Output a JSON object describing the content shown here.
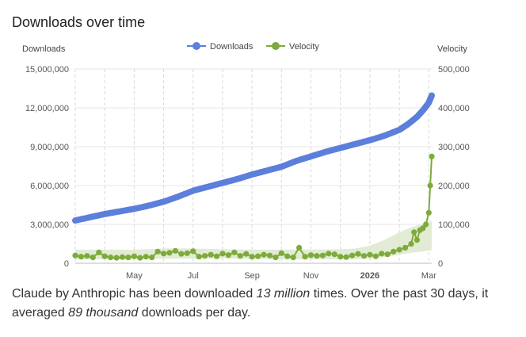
{
  "chart_data": {
    "type": "line",
    "title": "Downloads over time",
    "ylabel_left": "Downloads",
    "ylabel_right": "Velocity",
    "ylim_left": [
      0,
      15000000
    ],
    "ylim_right": [
      0,
      500000
    ],
    "yticks_left": [
      "0",
      "3,000,000",
      "6,000,000",
      "9,000,000",
      "12,000,000",
      "15,000,000"
    ],
    "yticks_right": [
      "0",
      "100,000",
      "200,000",
      "300,000",
      "400,000",
      "500,000"
    ],
    "xticks": [
      {
        "label": "May",
        "bold": false,
        "x": 2.0
      },
      {
        "label": "Jul",
        "bold": false,
        "x": 4.0
      },
      {
        "label": "Sep",
        "bold": false,
        "x": 6.0
      },
      {
        "label": "Nov",
        "bold": false,
        "x": 8.0
      },
      {
        "label": "2026",
        "bold": true,
        "x": 10.0
      },
      {
        "label": "Mar",
        "bold": false,
        "x": 12.0
      }
    ],
    "xlim": [
      0,
      12.1
    ],
    "legend": [
      {
        "name": "Downloads",
        "color": "#5b7fdb"
      },
      {
        "name": "Velocity",
        "color": "#7cab3a"
      }
    ],
    "series": [
      {
        "name": "Downloads",
        "axis": "left",
        "color": "#5b7fdb",
        "x": [
          0,
          0.5,
          1,
          1.5,
          2,
          2.5,
          3,
          3.5,
          4,
          4.5,
          5,
          5.5,
          6,
          6.5,
          7,
          7.5,
          8,
          8.5,
          9,
          9.5,
          10,
          10.5,
          11,
          11.3,
          11.6,
          11.8,
          12,
          12.1
        ],
        "values": [
          3300000,
          3550000,
          3800000,
          4000000,
          4200000,
          4450000,
          4750000,
          5150000,
          5600000,
          5900000,
          6200000,
          6500000,
          6850000,
          7150000,
          7450000,
          7900000,
          8250000,
          8600000,
          8900000,
          9200000,
          9500000,
          9850000,
          10300000,
          10750000,
          11300000,
          11800000,
          12400000,
          12950000
        ]
      },
      {
        "name": "Velocity",
        "axis": "right",
        "color": "#7cab3a",
        "x": [
          0,
          0.2,
          0.4,
          0.6,
          0.8,
          1.0,
          1.2,
          1.4,
          1.6,
          1.8,
          2.0,
          2.2,
          2.4,
          2.6,
          2.8,
          3.0,
          3.2,
          3.4,
          3.6,
          3.8,
          4.0,
          4.2,
          4.4,
          4.6,
          4.8,
          5.0,
          5.2,
          5.4,
          5.6,
          5.8,
          6.0,
          6.2,
          6.4,
          6.6,
          6.8,
          7.0,
          7.2,
          7.4,
          7.6,
          7.8,
          8.0,
          8.2,
          8.4,
          8.6,
          8.8,
          9.0,
          9.2,
          9.4,
          9.6,
          9.8,
          10.0,
          10.2,
          10.4,
          10.6,
          10.8,
          11.0,
          11.2,
          11.4,
          11.5,
          11.6,
          11.7,
          11.8,
          11.9,
          12.0,
          12.05,
          12.1
        ],
        "values": [
          20000,
          17000,
          19000,
          15000,
          28000,
          18000,
          15000,
          14000,
          16000,
          15000,
          18000,
          14000,
          17000,
          15000,
          30000,
          25000,
          27000,
          32000,
          24000,
          26000,
          31000,
          17000,
          19000,
          22000,
          18000,
          25000,
          21000,
          28000,
          19000,
          24000,
          17000,
          18000,
          22000,
          20000,
          15000,
          26000,
          18000,
          15000,
          40000,
          17000,
          21000,
          19000,
          20000,
          25000,
          23000,
          17000,
          16000,
          20000,
          24000,
          19000,
          22000,
          18000,
          25000,
          23000,
          30000,
          35000,
          40000,
          50000,
          80000,
          60000,
          85000,
          90000,
          100000,
          130000,
          200000,
          275000
        ]
      },
      {
        "name": "Velocity range",
        "axis": "right",
        "color": "#dfe9cf",
        "x": [
          0,
          1,
          2,
          3,
          4,
          5,
          6,
          7,
          8,
          9,
          9.5,
          10,
          10.5,
          11,
          11.5,
          12,
          12.1
        ],
        "upper": [
          35000,
          35000,
          35000,
          38000,
          38000,
          36000,
          35000,
          35000,
          35000,
          36000,
          38000,
          45000,
          60000,
          80000,
          95000,
          105000,
          110000
        ],
        "lower": [
          10000,
          10000,
          10000,
          12000,
          12000,
          12000,
          11000,
          10000,
          10000,
          10000,
          10000,
          12000,
          16000,
          22000,
          28000,
          32000,
          34000
        ]
      }
    ]
  },
  "summary": {
    "prefix": "Claude by Anthropic has been downloaded ",
    "total": "13 million",
    "middle": " times. Over the past 30 days, it averaged ",
    "daily": "89 thousand",
    "suffix": " downloads per day."
  }
}
